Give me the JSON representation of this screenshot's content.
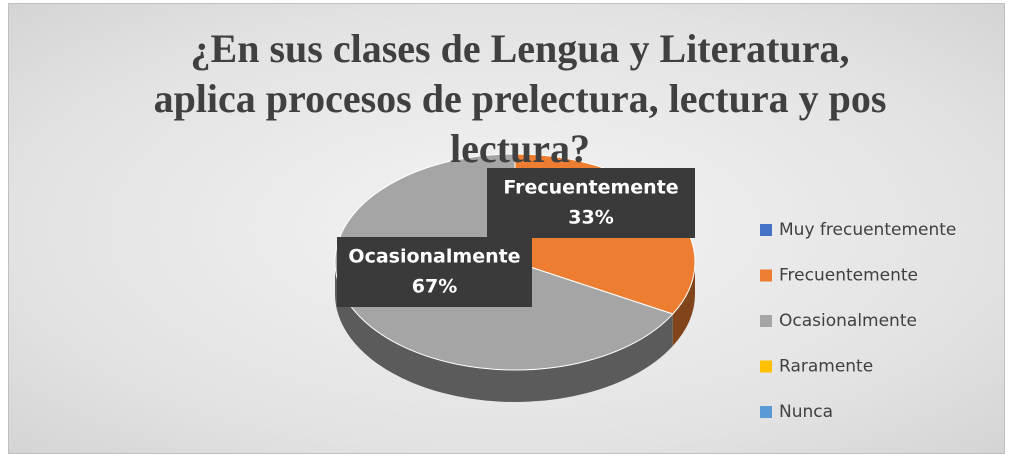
{
  "chart_data": {
    "type": "pie",
    "title": "¿En sus clases de Lengua y Literatura, aplica procesos de prelectura, lectura y pos lectura?",
    "categories": [
      "Muy frecuentemente",
      "Frecuentemente",
      "Ocasionalmente",
      "Raramente",
      "Nunca"
    ],
    "values": [
      0,
      33,
      67,
      0,
      0
    ],
    "value_labels": [
      null,
      "33%",
      "67%",
      null,
      null
    ],
    "colors": [
      "#4472c4",
      "#ed7d31",
      "#a5a5a5",
      "#ffc000",
      "#5b9bd5"
    ],
    "legend": "right"
  }
}
